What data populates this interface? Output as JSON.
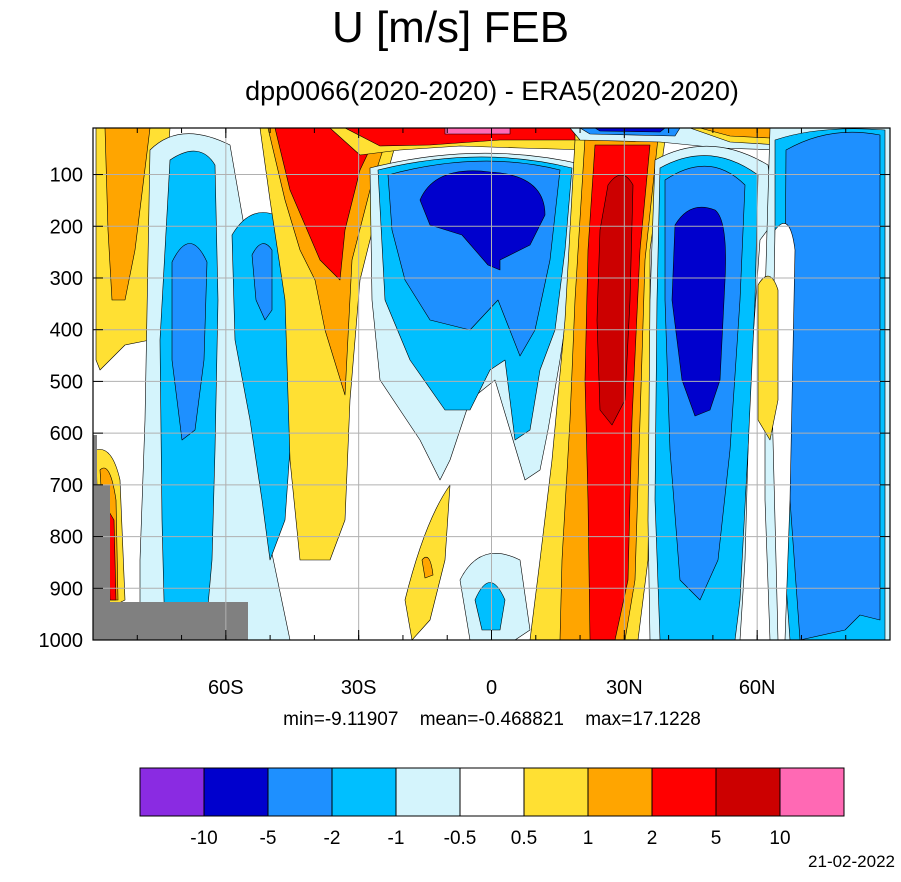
{
  "title": "U [m/s] FEB",
  "subtitle": "dpp0066(2020-2020) - ERA5(2020-2020)",
  "stats": {
    "min": "min=-9.11907",
    "mean": "mean=-0.468821",
    "max": "max=17.1228"
  },
  "date": "21-02-2022",
  "chart_data": {
    "type": "heatmap",
    "title": "U [m/s] FEB",
    "subtitle": "dpp0066(2020-2020) - ERA5(2020-2020)",
    "x_axis": {
      "label": "",
      "range": [
        -90,
        90
      ],
      "tick_values": [
        -60,
        -30,
        0,
        30,
        60
      ],
      "tick_labels": [
        "60S",
        "30S",
        "0",
        "30N",
        "60N"
      ]
    },
    "y_axis": {
      "label": "",
      "range": [
        1000,
        10
      ],
      "reversed": true,
      "tick_values": [
        100,
        200,
        300,
        400,
        500,
        600,
        700,
        800,
        900,
        1000
      ],
      "tick_labels": [
        "100",
        "200",
        "300",
        "400",
        "500",
        "600",
        "700",
        "800",
        "900",
        "1000"
      ]
    },
    "grid": true,
    "legend": "bottom colorbar",
    "colorbar": {
      "levels": [
        -10,
        -5,
        -2,
        -1,
        -0.5,
        0.5,
        1,
        2,
        5,
        10
      ],
      "tick_labels": [
        "-10",
        "-5",
        "-2",
        "-1",
        "-0.5",
        "0.5",
        "1",
        "2",
        "5",
        "10"
      ],
      "colors": [
        "#8a2be2",
        "#0000cd",
        "#1e90ff",
        "#00bfff",
        "#d4f4fc",
        "#ffffff",
        "#ffe033",
        "#ffa500",
        "#ff0000",
        "#cc0000",
        "#ff69b4"
      ]
    },
    "missing_color": "#808080",
    "features": [
      {
        "name": "equatorial easterly difference",
        "lat": [
          -15,
          10
        ],
        "lev": [
          50,
          300
        ],
        "value": -6
      },
      {
        "name": "northern subtropical positive difference",
        "lat": [
          20,
          33
        ],
        "lev": [
          50,
          1000
        ],
        "value": 7
      },
      {
        "name": "northern midlatitude negative difference",
        "lat": [
          37,
          55
        ],
        "lev": [
          150,
          600
        ],
        "value": -6
      },
      {
        "name": "southern high-latitude positive difference",
        "lat": [
          -45,
          -30
        ],
        "lev": [
          10,
          400
        ],
        "value": 6
      },
      {
        "name": "stratospheric positive difference",
        "lat": [
          -60,
          20
        ],
        "lev": [
          10,
          50
        ],
        "value": 6
      }
    ],
    "stats": {
      "min": -9.11907,
      "mean": -0.468821,
      "max": 17.1228
    }
  }
}
